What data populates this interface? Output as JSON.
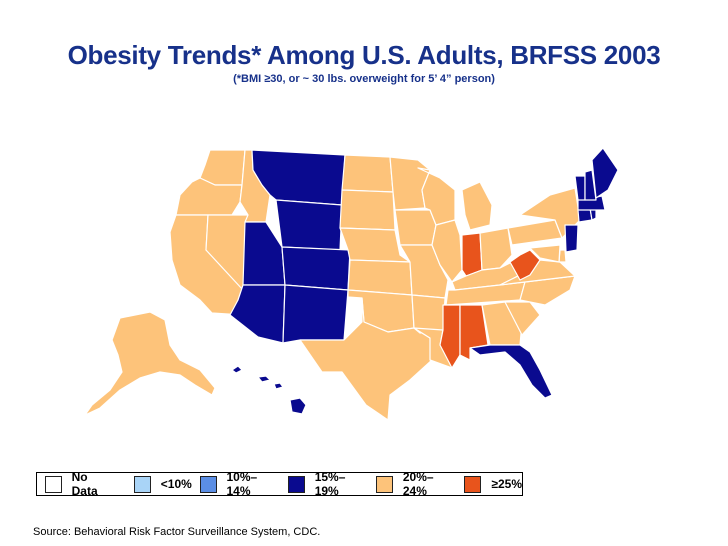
{
  "title": "Obesity Trends* Among U.S. Adults, BRFSS 2003",
  "subtitle": "(*BMI ≥30, or ~ 30 lbs. overweight for 5’ 4” person)",
  "colors": {
    "no_data": "#ffffff",
    "lt10": "#a9d4f7",
    "10_14": "#5b8ee5",
    "15_19": "#0a0a8f",
    "20_24": "#fdc37a",
    "ge25": "#e8541c",
    "border": "#ffffff"
  },
  "legend": [
    {
      "label": "No Data",
      "color_key": "no_data"
    },
    {
      "label": "<10%",
      "color_key": "lt10"
    },
    {
      "label": "10%–14%",
      "color_key": "10_14"
    },
    {
      "label": "15%–19%",
      "color_key": "15_19"
    },
    {
      "label": "20%–24%",
      "color_key": "20_24"
    },
    {
      "label": "≥25%",
      "color_key": "ge25"
    }
  ],
  "states": {
    "WA": "20_24",
    "OR": "20_24",
    "CA": "20_24",
    "NV": "20_24",
    "ID": "20_24",
    "MT": "15_19",
    "WY": "15_19",
    "UT": "15_19",
    "CO": "15_19",
    "AZ": "15_19",
    "NM": "15_19",
    "ND": "20_24",
    "SD": "20_24",
    "NE": "20_24",
    "KS": "20_24",
    "OK": "20_24",
    "TX": "20_24",
    "MN": "20_24",
    "IA": "20_24",
    "MO": "20_24",
    "AR": "20_24",
    "LA": "20_24",
    "WI": "20_24",
    "IL": "20_24",
    "MI": "20_24",
    "IN": "ge25",
    "OH": "20_24",
    "KY": "20_24",
    "TN": "20_24",
    "MS": "ge25",
    "AL": "ge25",
    "GA": "20_24",
    "FL": "15_19",
    "SC": "20_24",
    "NC": "20_24",
    "VA": "20_24",
    "WV": "ge25",
    "PA": "20_24",
    "NY": "20_24",
    "NJ": "15_19",
    "DE": "20_24",
    "MD": "20_24",
    "CT": "15_19",
    "RI": "15_19",
    "MA": "15_19",
    "VT": "15_19",
    "NH": "15_19",
    "ME": "15_19",
    "AK": "20_24",
    "HI": "15_19"
  },
  "source": "Source: Behavioral Risk Factor Surveillance System, CDC."
}
